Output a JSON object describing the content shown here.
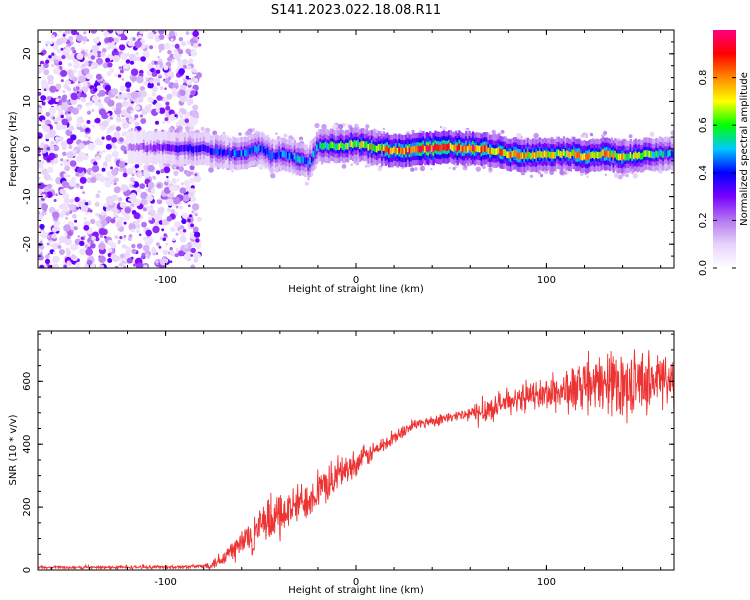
{
  "figure": {
    "title": "S141.2023.022.18.08.R11"
  },
  "colors": {
    "snr_line": "#ee3333",
    "colormap": [
      "#ffffff",
      "#e6d2fa",
      "#b478f0",
      "#7a00ff",
      "#0000ff",
      "#00c8ff",
      "#00ff00",
      "#ffff00",
      "#ff8800",
      "#ff0000",
      "#ff0080"
    ]
  },
  "chart_data": [
    {
      "type": "heatmap",
      "title": "",
      "xlabel": "Height of straight line (km)",
      "ylabel": "Frequency (Hz)",
      "xlim": [
        -167,
        167
      ],
      "ylim": [
        -25,
        25
      ],
      "xticks": [
        -100,
        0,
        100
      ],
      "yticks": [
        -20,
        -10,
        0,
        10,
        20
      ],
      "colorbar": {
        "label": "Normalized spectral amplitude",
        "range": [
          0,
          1
        ],
        "ticks": [
          "0.0",
          "0.2",
          "0.4",
          "0.6",
          "0.8"
        ],
        "tick_values": [
          0,
          0.2,
          0.4,
          0.6,
          0.8
        ]
      },
      "signal_trace": {
        "x": [
          -120,
          -100,
          -80,
          -70,
          -60,
          -50,
          -45,
          -40,
          -30,
          -25,
          -20,
          -10,
          0,
          10,
          20,
          30,
          40,
          50,
          60,
          70,
          80,
          90,
          100,
          110,
          120,
          130,
          140,
          150,
          160,
          167
        ],
        "freq": [
          0.3,
          0.3,
          0.0,
          -0.8,
          -1.0,
          0.3,
          -1.5,
          -1.0,
          -2.0,
          -3.0,
          0.8,
          0.5,
          1.0,
          0.3,
          -0.4,
          0.0,
          0.2,
          0.3,
          0.1,
          -0.2,
          -1.0,
          -1.3,
          -1.1,
          -0.9,
          -1.5,
          -1.0,
          -1.7,
          -1.3,
          -1.0,
          -1.0
        ],
        "peak_amplitude": [
          0.2,
          0.3,
          0.4,
          0.4,
          0.45,
          0.45,
          0.4,
          0.45,
          0.5,
          0.45,
          0.5,
          0.6,
          0.65,
          0.75,
          0.85,
          0.85,
          0.95,
          0.85,
          0.9,
          0.8,
          0.75,
          0.75,
          0.7,
          0.7,
          0.8,
          0.75,
          0.7,
          0.65,
          0.55,
          0.45
        ]
      },
      "noise_region_x": [
        -167,
        -82
      ]
    },
    {
      "type": "line",
      "title": "",
      "xlabel": "Height of straight line (km)",
      "ylabel": "SNR (10 * v/v)",
      "xlim": [
        -167,
        167
      ],
      "ylim": [
        0,
        760
      ],
      "xticks": [
        -100,
        0,
        100
      ],
      "yticks": [
        0,
        200,
        400,
        600
      ],
      "series": [
        {
          "x": [
            -167,
            -140,
            -110,
            -90,
            -80,
            -75,
            -70,
            -65,
            -60,
            -55,
            -50,
            -45,
            -40,
            -35,
            -30,
            -25,
            -20,
            -15,
            -10,
            -5,
            0,
            5,
            10,
            15,
            20,
            25,
            30,
            40,
            50,
            60,
            65,
            70,
            80,
            90,
            100,
            110,
            120,
            130,
            140,
            150,
            160,
            167
          ],
          "values": [
            8,
            8,
            9,
            10,
            12,
            20,
            40,
            60,
            85,
            110,
            130,
            155,
            170,
            190,
            210,
            230,
            250,
            275,
            295,
            320,
            340,
            360,
            380,
            400,
            420,
            440,
            460,
            475,
            485,
            495,
            500,
            515,
            535,
            550,
            560,
            570,
            580,
            590,
            595,
            600,
            605,
            605
          ],
          "noise_amplitude": [
            4,
            4,
            4,
            5,
            5,
            15,
            25,
            35,
            45,
            55,
            60,
            60,
            60,
            55,
            55,
            50,
            50,
            50,
            45,
            40,
            35,
            30,
            25,
            22,
            20,
            18,
            15,
            15,
            15,
            20,
            40,
            35,
            30,
            35,
            45,
            60,
            70,
            75,
            80,
            80,
            80,
            80
          ]
        }
      ]
    }
  ]
}
